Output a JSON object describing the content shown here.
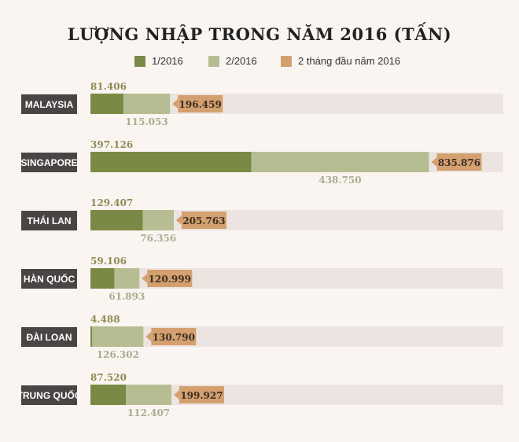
{
  "title": "LƯỢNG NHẬP TRONG NĂM 2016 (TẤN)",
  "legend": [
    {
      "label": "1/2016",
      "color": "#7a8a46"
    },
    {
      "label": "2/2016",
      "color": "#b7bd93"
    },
    {
      "label": "2 tháng đầu năm 2016",
      "color": "#d4a070"
    }
  ],
  "colors": {
    "jan": "#7a8a46",
    "feb": "#b7bd93",
    "total": "#d4a070",
    "track": "#ece4e1",
    "country_label_bg": "#4a4444",
    "jan_text": "#8f8a55",
    "feb_text": "#a8ad8e",
    "total_text": "#3b2e22"
  },
  "chart_data": {
    "type": "bar",
    "orientation": "horizontal",
    "stacked": true,
    "categories": [
      "MALAYSIA",
      "SINGAPORE",
      "THÁI LAN",
      "HÀN QUỐC",
      "ĐÀI LOAN",
      "TRUNG QUỐC"
    ],
    "series": [
      {
        "name": "1/2016",
        "values": [
          81406,
          397126,
          129407,
          59106,
          4488,
          87520
        ],
        "labels": [
          "81.406",
          "397.126",
          "129.407",
          "59.106",
          "4.488",
          "87.520"
        ]
      },
      {
        "name": "2/2016",
        "values": [
          115053,
          438750,
          76356,
          61893,
          126302,
          112407
        ],
        "labels": [
          "115.053",
          "438.750",
          "76.356",
          "61.893",
          "126.302",
          "112.407"
        ]
      },
      {
        "name": "2 tháng đầu năm 2016",
        "values": [
          196459,
          835876,
          205763,
          120999,
          130790,
          199927
        ],
        "labels": [
          "196.459",
          "835.876",
          "205.763",
          "120.999",
          "130.790",
          "199.927"
        ]
      }
    ],
    "title": "LƯỢNG NHẬP TRONG NĂM 2016 (TẤN)",
    "xlabel": "",
    "ylabel": ""
  }
}
